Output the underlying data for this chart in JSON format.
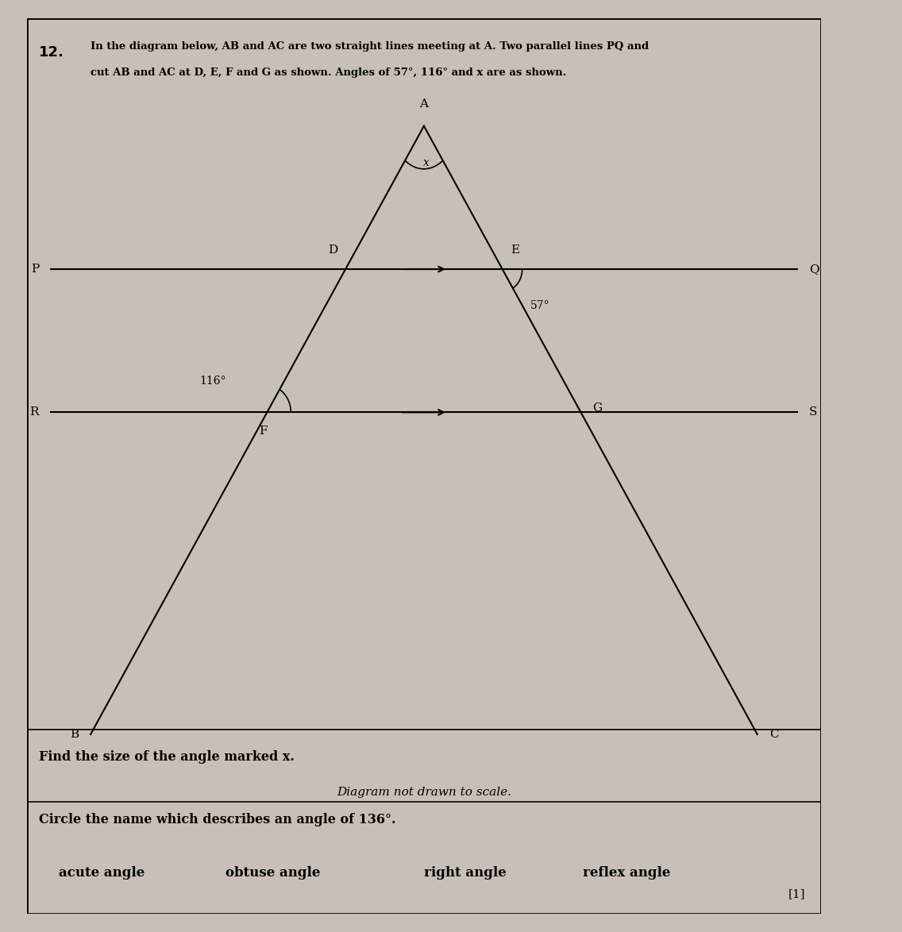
{
  "title_number": "12.",
  "question_text_line1": "In the diagram below, AB and AC are two straight lines meeting at A. Two parallel lines PQ and",
  "question_text_line2": "cut AB and AC at D, E, F and G as shown. Angles of 57°, 116° and x are as shown.",
  "diagram_note": "Diagram not drawn to scale.",
  "find_text": "Find the size of the angle marked x.",
  "circle_text": "Circle the name which describes an angle of 136°.",
  "angle_options": [
    "acute angle",
    "obtuse angle",
    "right angle",
    "reflex angle"
  ],
  "mark": "[1]",
  "bg_color": "#c8c0b8",
  "paper_color": "#ddd8d0",
  "line_color": "#000000",
  "angle_57": "57°",
  "angle_116": "116°",
  "angle_x": "x"
}
